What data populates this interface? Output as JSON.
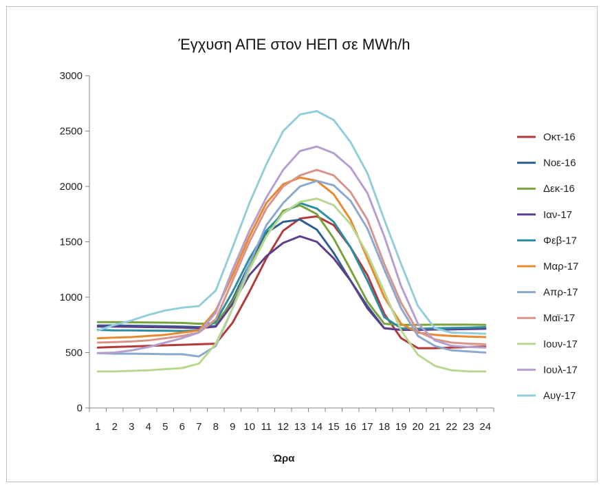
{
  "chart_data": {
    "type": "line",
    "title": "Έγχυση ΑΠΕ στον ΗΕΠ σε MWh/h",
    "xlabel": "Ώρα",
    "ylabel": "",
    "ylim": [
      0,
      3000
    ],
    "yticks": [
      0,
      500,
      1000,
      1500,
      2000,
      2500,
      3000
    ],
    "categories": [
      "1",
      "2",
      "3",
      "4",
      "5",
      "6",
      "7",
      "8",
      "9",
      "10",
      "11",
      "12",
      "13",
      "14",
      "15",
      "16",
      "17",
      "18",
      "19",
      "20",
      "21",
      "22",
      "23",
      "24"
    ],
    "grid": "vertical-axis-lines-only",
    "legend_position": "right",
    "series": [
      {
        "name": "Οκτ-16",
        "color": "#b33a3a",
        "values": [
          545,
          550,
          555,
          560,
          565,
          570,
          575,
          580,
          770,
          1050,
          1350,
          1600,
          1710,
          1730,
          1650,
          1450,
          1200,
          850,
          630,
          540,
          540,
          545,
          550,
          555
        ]
      },
      {
        "name": "Νοε-16",
        "color": "#2e5f8e",
        "values": [
          745,
          745,
          742,
          740,
          738,
          735,
          730,
          740,
          980,
          1300,
          1580,
          1680,
          1700,
          1610,
          1400,
          1150,
          920,
          720,
          705,
          705,
          710,
          710,
          715,
          720
        ]
      },
      {
        "name": "Δεκ-16",
        "color": "#78a33b",
        "values": [
          775,
          775,
          773,
          772,
          770,
          768,
          760,
          765,
          960,
          1270,
          1550,
          1780,
          1830,
          1750,
          1530,
          1250,
          960,
          760,
          750,
          750,
          752,
          752,
          752,
          750
        ]
      },
      {
        "name": "Ιαν-17",
        "color": "#5d3f8b",
        "values": [
          735,
          735,
          732,
          730,
          728,
          725,
          720,
          735,
          940,
          1200,
          1370,
          1490,
          1550,
          1500,
          1350,
          1150,
          900,
          720,
          705,
          705,
          708,
          710,
          712,
          715
        ]
      },
      {
        "name": "Φεβ-17",
        "color": "#2b8fa3",
        "values": [
          705,
          700,
          700,
          698,
          697,
          695,
          700,
          780,
          1050,
          1350,
          1600,
          1760,
          1850,
          1800,
          1680,
          1450,
          1150,
          820,
          720,
          715,
          720,
          722,
          725,
          730
        ]
      },
      {
        "name": "Μαρ-17",
        "color": "#e8882f",
        "values": [
          630,
          635,
          640,
          650,
          660,
          680,
          700,
          880,
          1200,
          1550,
          1850,
          2020,
          2080,
          2050,
          1930,
          1700,
          1350,
          1000,
          760,
          680,
          660,
          650,
          645,
          640
        ]
      },
      {
        "name": "Απρ-17",
        "color": "#8ba9cf",
        "values": [
          495,
          490,
          490,
          488,
          485,
          485,
          465,
          560,
          900,
          1300,
          1650,
          1850,
          2000,
          2050,
          2010,
          1870,
          1620,
          1250,
          900,
          650,
          560,
          520,
          510,
          500
        ]
      },
      {
        "name": "Μαϊ-17",
        "color": "#d9948a",
        "values": [
          590,
          595,
          600,
          610,
          630,
          650,
          680,
          800,
          1150,
          1500,
          1800,
          2000,
          2100,
          2150,
          2100,
          1950,
          1700,
          1300,
          950,
          690,
          620,
          590,
          580,
          575
        ]
      },
      {
        "name": "Ιουν-17",
        "color": "#b8d890",
        "values": [
          330,
          330,
          335,
          340,
          350,
          360,
          400,
          580,
          900,
          1250,
          1550,
          1760,
          1860,
          1890,
          1830,
          1660,
          1390,
          1050,
          700,
          480,
          380,
          340,
          330,
          330
        ]
      },
      {
        "name": "Ιουλ-17",
        "color": "#b49fcf",
        "values": [
          495,
          500,
          520,
          550,
          590,
          630,
          680,
          860,
          1250,
          1600,
          1900,
          2150,
          2320,
          2360,
          2300,
          2170,
          1940,
          1550,
          1100,
          760,
          610,
          560,
          550,
          545
        ]
      },
      {
        "name": "Αυγ-17",
        "color": "#92cddc",
        "values": [
          700,
          750,
          790,
          840,
          880,
          905,
          920,
          1060,
          1450,
          1850,
          2200,
          2500,
          2650,
          2680,
          2600,
          2400,
          2120,
          1700,
          1300,
          920,
          720,
          680,
          675,
          670
        ]
      }
    ]
  }
}
